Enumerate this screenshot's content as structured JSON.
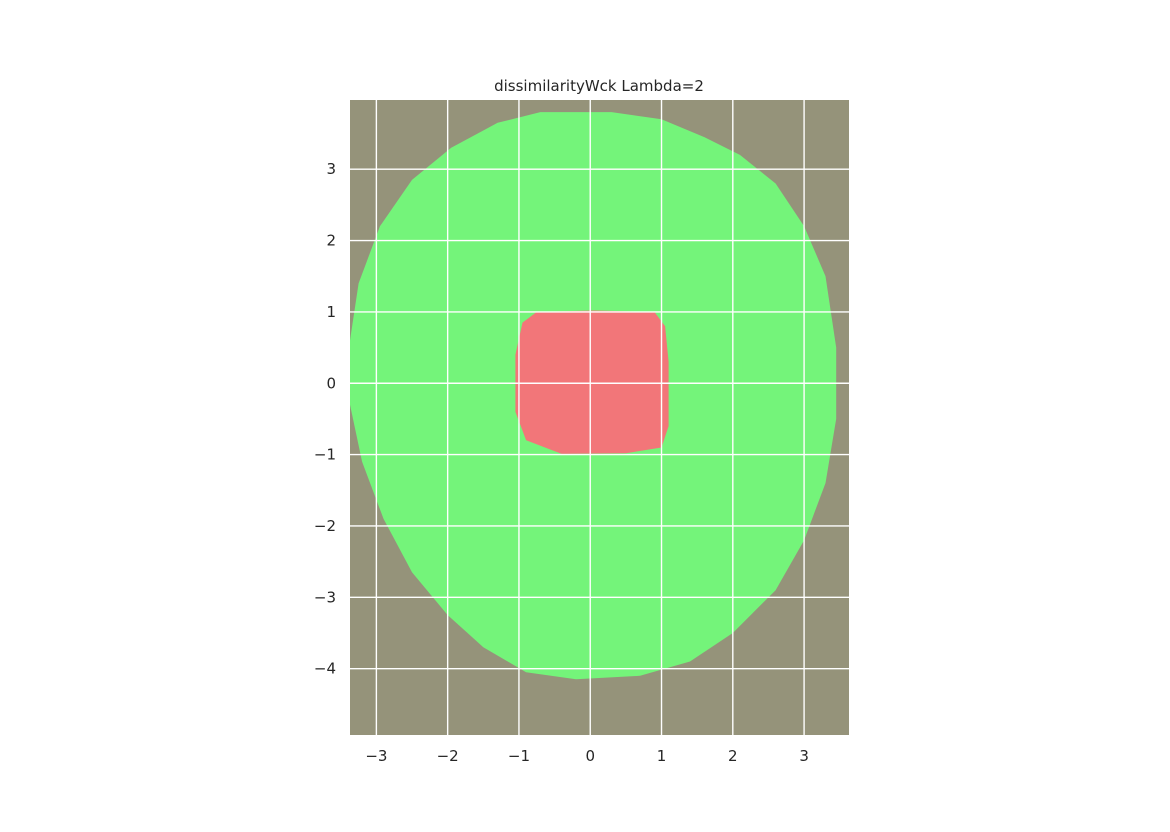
{
  "chart_data": {
    "type": "heatmap",
    "title": "dissimilarityWck Lambda=2",
    "xlabel": "",
    "ylabel": "",
    "xlim": [
      -3.37,
      3.63
    ],
    "ylim": [
      -4.93,
      3.97
    ],
    "x_ticks": [
      -3,
      -2,
      -1,
      0,
      1,
      2,
      3
    ],
    "x_tick_labels": [
      "−3",
      "−2",
      "−1",
      "0",
      "1",
      "2",
      "3"
    ],
    "y_ticks": [
      3,
      2,
      1,
      0,
      -1,
      -2,
      -3,
      -4
    ],
    "y_tick_labels": [
      "3",
      "2",
      "1",
      "0",
      "−1",
      "−2",
      "−3",
      "−4"
    ],
    "grid": true,
    "colors": {
      "background_region": "#95937a",
      "outer_region": "#74f47a",
      "inner_region": "#f27679",
      "grid": "#ffffff"
    },
    "regions": [
      {
        "class": "outer",
        "color": "#74f47a",
        "boundary": [
          [
            -0.7,
            3.8
          ],
          [
            0.3,
            3.8
          ],
          [
            1.0,
            3.7
          ],
          [
            1.6,
            3.45
          ],
          [
            2.1,
            3.2
          ],
          [
            2.6,
            2.8
          ],
          [
            3.0,
            2.2
          ],
          [
            3.3,
            1.5
          ],
          [
            3.45,
            0.5
          ],
          [
            3.45,
            -0.5
          ],
          [
            3.3,
            -1.4
          ],
          [
            3.0,
            -2.2
          ],
          [
            2.6,
            -2.9
          ],
          [
            2.0,
            -3.5
          ],
          [
            1.4,
            -3.9
          ],
          [
            0.7,
            -4.1
          ],
          [
            -0.2,
            -4.15
          ],
          [
            -0.9,
            -4.05
          ],
          [
            -1.5,
            -3.7
          ],
          [
            -2.0,
            -3.25
          ],
          [
            -2.5,
            -2.65
          ],
          [
            -2.9,
            -1.9
          ],
          [
            -3.2,
            -1.1
          ],
          [
            -3.37,
            -0.3
          ],
          [
            -3.37,
            0.6
          ],
          [
            -3.25,
            1.4
          ],
          [
            -2.95,
            2.2
          ],
          [
            -2.5,
            2.85
          ],
          [
            -1.95,
            3.3
          ],
          [
            -1.3,
            3.65
          ]
        ]
      },
      {
        "class": "inner",
        "color": "#f27679",
        "boundary": [
          [
            -0.75,
            1.0
          ],
          [
            0.05,
            1.02
          ],
          [
            0.9,
            1.0
          ],
          [
            1.05,
            0.8
          ],
          [
            1.1,
            0.3
          ],
          [
            1.1,
            -0.6
          ],
          [
            1.0,
            -0.9
          ],
          [
            0.5,
            -0.98
          ],
          [
            -0.4,
            -0.99
          ],
          [
            -0.9,
            -0.8
          ],
          [
            -1.05,
            -0.4
          ],
          [
            -1.05,
            0.4
          ],
          [
            -0.95,
            0.85
          ]
        ]
      }
    ]
  }
}
